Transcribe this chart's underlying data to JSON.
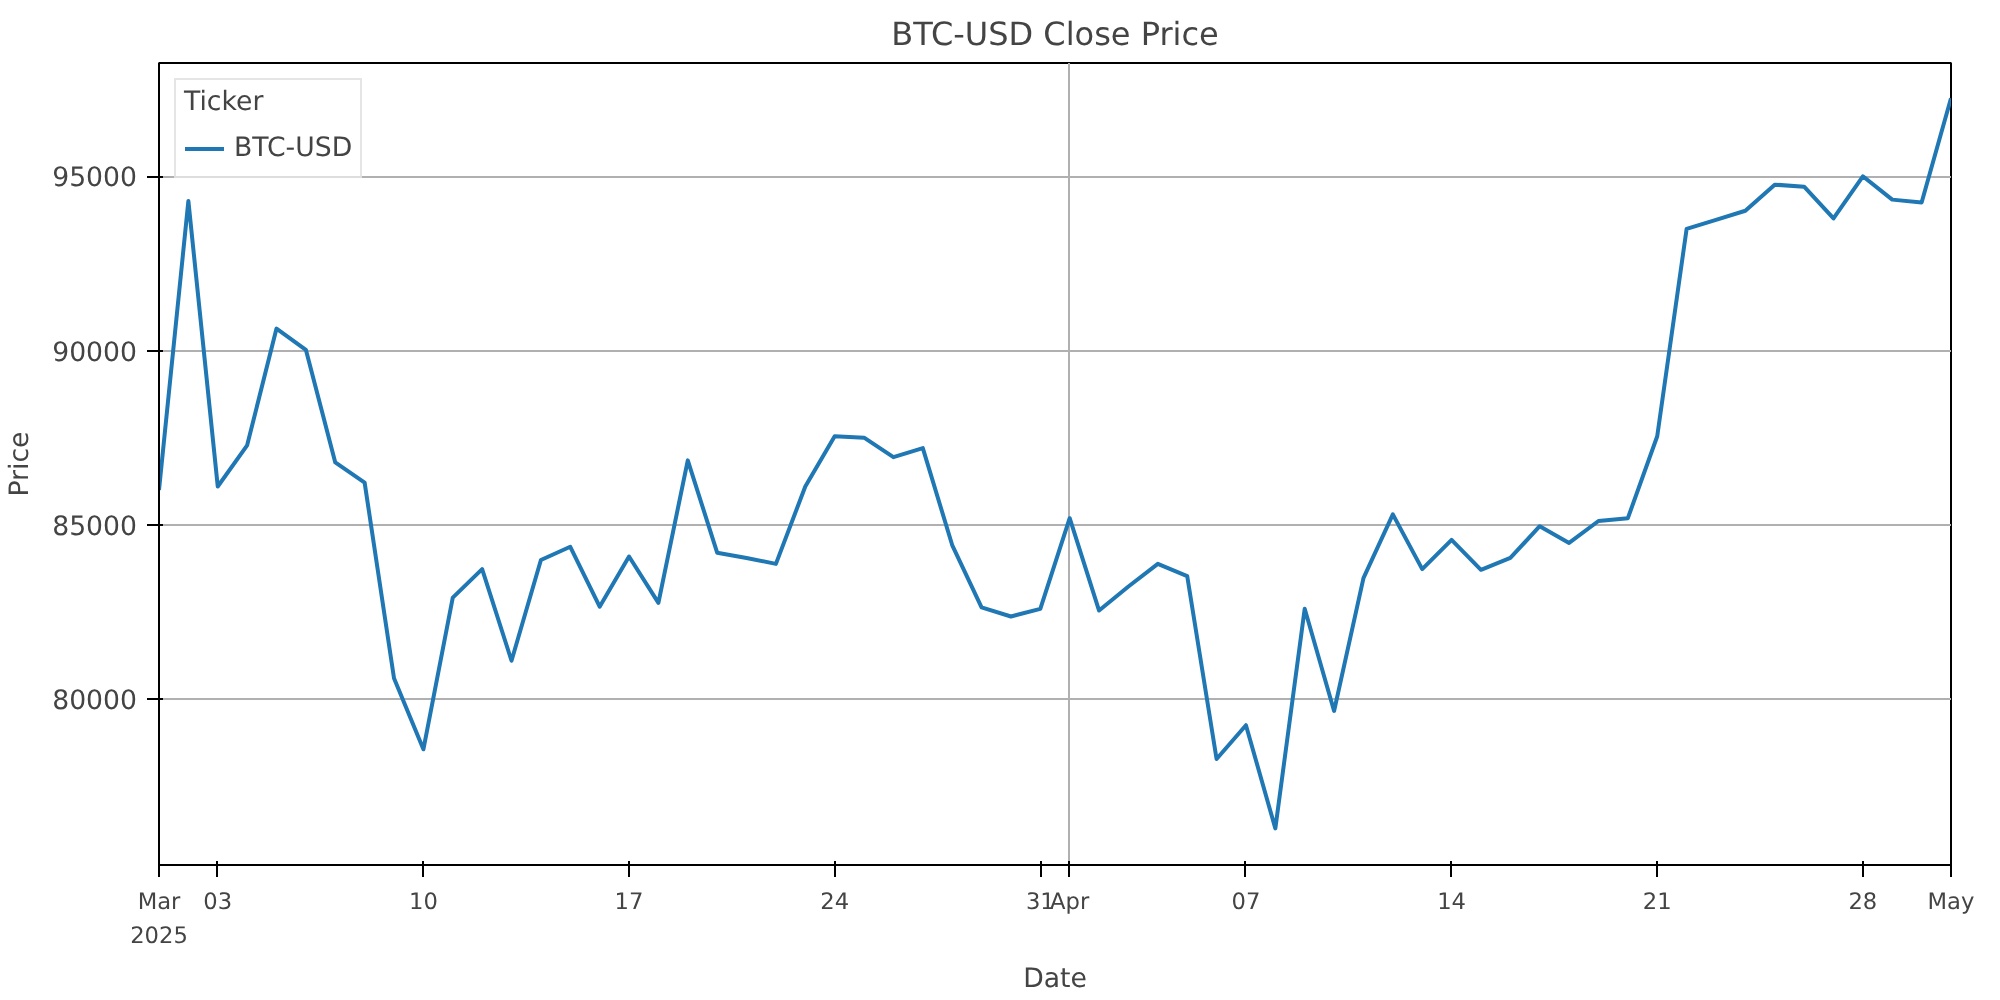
{
  "chart_data": {
    "type": "line",
    "title": "BTC-USD Close Price",
    "xlabel": "Date",
    "ylabel": "Price",
    "legend_title": "Ticker",
    "legend": "top left",
    "grid": true,
    "line_style": "solid",
    "marker": "none",
    "x": [
      "2025-03-01",
      "2025-03-02",
      "2025-03-03",
      "2025-03-04",
      "2025-03-05",
      "2025-03-06",
      "2025-03-07",
      "2025-03-08",
      "2025-03-09",
      "2025-03-10",
      "2025-03-11",
      "2025-03-12",
      "2025-03-13",
      "2025-03-14",
      "2025-03-15",
      "2025-03-16",
      "2025-03-17",
      "2025-03-18",
      "2025-03-19",
      "2025-03-20",
      "2025-03-21",
      "2025-03-22",
      "2025-03-23",
      "2025-03-24",
      "2025-03-25",
      "2025-03-26",
      "2025-03-27",
      "2025-03-28",
      "2025-03-29",
      "2025-03-30",
      "2025-03-31",
      "2025-04-01",
      "2025-04-02",
      "2025-04-03",
      "2025-04-04",
      "2025-04-05",
      "2025-04-06",
      "2025-04-07",
      "2025-04-08",
      "2025-04-09",
      "2025-04-10",
      "2025-04-11",
      "2025-04-12",
      "2025-04-13",
      "2025-04-14",
      "2025-04-15",
      "2025-04-16",
      "2025-04-17",
      "2025-04-18",
      "2025-04-19",
      "2025-04-20",
      "2025-04-21",
      "2025-04-22",
      "2025-04-23",
      "2025-04-24",
      "2025-04-25",
      "2025-04-26",
      "2025-04-27",
      "2025-04-28",
      "2025-04-29",
      "2025-04-30",
      "2025-05-01"
    ],
    "series": [
      {
        "name": "BTC-USD",
        "color": "#1f77b4",
        "values": [
          86000,
          94290,
          86100,
          87280,
          90630,
          90020,
          86790,
          86210,
          80600,
          78560,
          82910,
          83730,
          81100,
          83990,
          84370,
          82650,
          84090,
          82760,
          86850,
          84200,
          84050,
          83880,
          86100,
          87540,
          87500,
          86940,
          87200,
          84420,
          82630,
          82370,
          82590,
          85190,
          82540,
          83230,
          83880,
          83530,
          78280,
          79250,
          76290,
          82590,
          79660,
          83470,
          85300,
          83730,
          84570,
          83710,
          84050,
          84960,
          84480,
          85110,
          85190,
          87540,
          93490,
          93750,
          94010,
          94760,
          94700,
          93790,
          95000,
          94330,
          94250,
          97240
        ]
      }
    ],
    "xlim": [
      "2025-03-01",
      "2025-05-01"
    ],
    "xticks": [
      {
        "value": "2025-03-01",
        "label": "Mar\n2025"
      },
      {
        "value": "2025-03-03",
        "label": "03"
      },
      {
        "value": "2025-03-10",
        "label": "10"
      },
      {
        "value": "2025-03-17",
        "label": "17"
      },
      {
        "value": "2025-03-24",
        "label": "24"
      },
      {
        "value": "2025-03-31",
        "label": "31"
      },
      {
        "value": "2025-04-01",
        "label": "Apr"
      },
      {
        "value": "2025-04-07",
        "label": "07"
      },
      {
        "value": "2025-04-14",
        "label": "14"
      },
      {
        "value": "2025-04-21",
        "label": "21"
      },
      {
        "value": "2025-04-28",
        "label": "28"
      },
      {
        "value": "2025-05-01",
        "label": "May"
      }
    ],
    "ylim": [
      75240,
      98250
    ],
    "yticks": [
      80000,
      85000,
      90000,
      95000
    ]
  }
}
